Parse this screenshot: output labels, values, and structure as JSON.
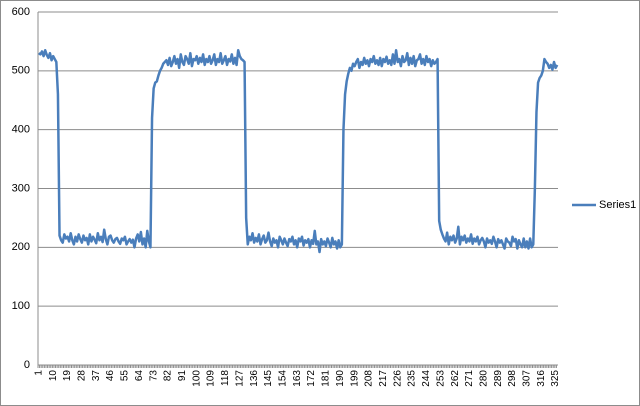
{
  "chart_data": {
    "type": "line",
    "categories": [
      1,
      null,
      null,
      null,
      null,
      null,
      null,
      null,
      null,
      10,
      null,
      null,
      null,
      null,
      null,
      null,
      null,
      null,
      19,
      null,
      null,
      null,
      null,
      null,
      null,
      null,
      null,
      28,
      null,
      null,
      null,
      null,
      null,
      null,
      null,
      null,
      37,
      null,
      null,
      null,
      null,
      null,
      null,
      null,
      null,
      46,
      null,
      null,
      null,
      null,
      null,
      null,
      null,
      null,
      55,
      null,
      null,
      null,
      null,
      null,
      null,
      null,
      null,
      64,
      null,
      null,
      null,
      null,
      null,
      null,
      null,
      null,
      73,
      null,
      null,
      null,
      null,
      null,
      null,
      null,
      null,
      82,
      null,
      null,
      null,
      null,
      null,
      null,
      null,
      null,
      91,
      null,
      null,
      null,
      null,
      null,
      null,
      null,
      null,
      100,
      null,
      null,
      null,
      null,
      null,
      null,
      null,
      null,
      109,
      null,
      null,
      null,
      null,
      null,
      null,
      null,
      null,
      118,
      null,
      null,
      null,
      null,
      null,
      null,
      null,
      null,
      127,
      null,
      null,
      null,
      null,
      null,
      null,
      null,
      null,
      136,
      null,
      null,
      null,
      null,
      null,
      null,
      null,
      null,
      145,
      null,
      null,
      null,
      null,
      null,
      null,
      null,
      null,
      154,
      null,
      null,
      null,
      null,
      null,
      null,
      null,
      null,
      163,
      null,
      null,
      null,
      null,
      null,
      null,
      null,
      null,
      172,
      null,
      null,
      null,
      null,
      null,
      null,
      null,
      null,
      181,
      null,
      null,
      null,
      null,
      null,
      null,
      null,
      null,
      190,
      null,
      null,
      null,
      null,
      null,
      null,
      null,
      null,
      199,
      null,
      null,
      null,
      null,
      null,
      null,
      null,
      null,
      208,
      null,
      null,
      null,
      null,
      null,
      null,
      null,
      null,
      217,
      null,
      null,
      null,
      null,
      null,
      null,
      null,
      null,
      226,
      null,
      null,
      null,
      null,
      null,
      null,
      null,
      null,
      235,
      null,
      null,
      null,
      null,
      null,
      null,
      null,
      null,
      244,
      null,
      null,
      null,
      null,
      null,
      null,
      null,
      null,
      253,
      null,
      null,
      null,
      null,
      null,
      null,
      null,
      null,
      262,
      null,
      null,
      null,
      null,
      null,
      null,
      null,
      null,
      271,
      null,
      null,
      null,
      null,
      null,
      null,
      null,
      null,
      280,
      null,
      null,
      null,
      null,
      null,
      null,
      null,
      null,
      289,
      null,
      null,
      null,
      null,
      null,
      null,
      null,
      null,
      298,
      null,
      null,
      null,
      null,
      null,
      null,
      null,
      null,
      307,
      null,
      null,
      null,
      null,
      null,
      null,
      null,
      null,
      316,
      null,
      null,
      null,
      null,
      null,
      null,
      null,
      null,
      325,
      null
    ],
    "series": [
      {
        "name": "Series1",
        "color": "#4a7ebb",
        "values": [
          530,
          528,
          533,
          525,
          535,
          527,
          522,
          530,
          518,
          525,
          520,
          515,
          460,
          220,
          212,
          208,
          222,
          215,
          218,
          210,
          224,
          212,
          205,
          218,
          210,
          222,
          214,
          208,
          220,
          212,
          216,
          205,
          222,
          210,
          218,
          213,
          207,
          224,
          212,
          218,
          209,
          230,
          214,
          205,
          218,
          220,
          212,
          208,
          214,
          216,
          210,
          206,
          215,
          212,
          218,
          205,
          210,
          214,
          208,
          213,
          200,
          215,
          222,
          210,
          226,
          205,
          215,
          200,
          228,
          210,
          200,
          420,
          470,
          480,
          482,
          492,
          500,
          505,
          512,
          515,
          518,
          510,
          522,
          508,
          515,
          525,
          512,
          520,
          505,
          528,
          515,
          510,
          525,
          520,
          512,
          530,
          508,
          520,
          518,
          525,
          512,
          522,
          515,
          528,
          510,
          520,
          515,
          525,
          512,
          518,
          528,
          510,
          520,
          515,
          530,
          512,
          518,
          525,
          510,
          520,
          516,
          528,
          512,
          522,
          510,
          535,
          525,
          520,
          518,
          515,
          250,
          205,
          218,
          212,
          224,
          208,
          216,
          210,
          222,
          205,
          214,
          220,
          208,
          212,
          225,
          210,
          202,
          215,
          208,
          212,
          200,
          218,
          212,
          205,
          215,
          208,
          202,
          214,
          210,
          218,
          205,
          212,
          200,
          215,
          210,
          218,
          203,
          212,
          208,
          214,
          200,
          212,
          206,
          228,
          205,
          210,
          192,
          214,
          205,
          210,
          202,
          215,
          208,
          200,
          216,
          205,
          210,
          198,
          212,
          200,
          205,
          400,
          460,
          482,
          495,
          505,
          500,
          512,
          508,
          515,
          520,
          505,
          515,
          510,
          522,
          512,
          518,
          508,
          520,
          515,
          525,
          512,
          518,
          510,
          522,
          508,
          520,
          515,
          524,
          512,
          518,
          510,
          528,
          512,
          535,
          515,
          520,
          508,
          525,
          515,
          518,
          530,
          510,
          522,
          512,
          525,
          508,
          518,
          520,
          528,
          512,
          520,
          510,
          525,
          515,
          520,
          508,
          518,
          512,
          515,
          520,
          245,
          230,
          222,
          215,
          210,
          225,
          205,
          218,
          212,
          220,
          208,
          215,
          235,
          205,
          218,
          212,
          220,
          208,
          215,
          210,
          222,
          206,
          215,
          210,
          218,
          205,
          212,
          216,
          210,
          200,
          215,
          208,
          212,
          206,
          218,
          210,
          200,
          214,
          208,
          212,
          205,
          198,
          215,
          210,
          208,
          202,
          218,
          210,
          214,
          198,
          212,
          205,
          200,
          215,
          200,
          210,
          198,
          215,
          200,
          205,
          300,
          430,
          480,
          488,
          492,
          500,
          520,
          515,
          512,
          505,
          510,
          502,
          515,
          505,
          510
        ]
      }
    ],
    "ylim": [
      0,
      600
    ],
    "yticks": [
      0,
      100,
      200,
      300,
      400,
      500,
      600
    ],
    "grid": true,
    "legend": "right"
  }
}
